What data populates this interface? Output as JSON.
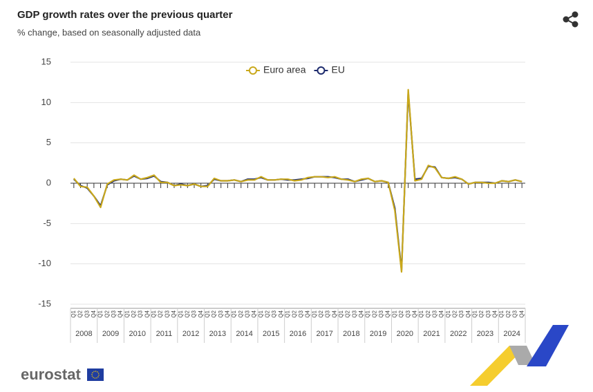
{
  "chart_data": {
    "type": "line",
    "title": "GDP growth rates over the previous quarter",
    "subtitle": "% change, based on seasonally adjusted data",
    "categories": [
      "Q1",
      "Q2",
      "Q3",
      "Q4",
      "Q1",
      "Q2",
      "Q3",
      "Q4",
      "Q1",
      "Q2",
      "Q3",
      "Q4",
      "Q1",
      "Q2",
      "Q3",
      "Q4",
      "Q1",
      "Q2",
      "Q3",
      "Q4",
      "Q1",
      "Q2",
      "Q3",
      "Q4",
      "Q1",
      "Q2",
      "Q3",
      "Q4",
      "Q1",
      "Q2",
      "Q3",
      "Q4",
      "Q1",
      "Q2",
      "Q3",
      "Q4",
      "Q1",
      "Q2",
      "Q3",
      "Q4",
      "Q1",
      "Q2",
      "Q3",
      "Q4",
      "Q1",
      "Q2",
      "Q3",
      "Q4",
      "Q1",
      "Q2",
      "Q3",
      "Q4",
      "Q1",
      "Q2",
      "Q3",
      "Q4",
      "Q1",
      "Q2",
      "Q3",
      "Q4",
      "Q1",
      "Q2",
      "Q3",
      "Q4",
      "Q1",
      "Q2",
      "Q3",
      "Q4"
    ],
    "year_groups": [
      "2008",
      "2009",
      "2010",
      "2011",
      "2012",
      "2013",
      "2014",
      "2015",
      "2016",
      "2017",
      "2018",
      "2019",
      "2020",
      "2021",
      "2022",
      "2023",
      "2024"
    ],
    "series": [
      {
        "name": "Euro area",
        "color": "#c9a81b",
        "values": [
          0.6,
          -0.4,
          -0.5,
          -1.6,
          -3.0,
          -0.1,
          0.4,
          0.5,
          0.4,
          1.0,
          0.5,
          0.7,
          1.0,
          0.1,
          0.1,
          -0.3,
          -0.2,
          -0.3,
          -0.1,
          -0.4,
          -0.4,
          0.6,
          0.3,
          0.3,
          0.4,
          0.2,
          0.4,
          0.4,
          0.8,
          0.4,
          0.4,
          0.5,
          0.5,
          0.3,
          0.4,
          0.7,
          0.8,
          0.8,
          0.7,
          0.8,
          0.5,
          0.4,
          0.2,
          0.5,
          0.6,
          0.2,
          0.3,
          0.1,
          -3.4,
          -11.0,
          11.6,
          0.3,
          0.5,
          2.2,
          1.9,
          0.7,
          0.6,
          0.8,
          0.5,
          -0.1,
          0.1,
          0.1,
          0.0,
          0.0,
          0.3,
          0.2,
          0.4,
          0.2
        ]
      },
      {
        "name": "EU",
        "color": "#1c2a6c",
        "values": [
          0.5,
          -0.3,
          -0.6,
          -1.6,
          -2.8,
          -0.2,
          0.3,
          0.5,
          0.4,
          0.9,
          0.5,
          0.6,
          0.9,
          0.2,
          0.1,
          -0.3,
          -0.1,
          -0.3,
          -0.1,
          -0.4,
          -0.3,
          0.5,
          0.3,
          0.3,
          0.4,
          0.2,
          0.5,
          0.5,
          0.7,
          0.4,
          0.4,
          0.5,
          0.4,
          0.4,
          0.5,
          0.6,
          0.8,
          0.8,
          0.8,
          0.7,
          0.5,
          0.5,
          0.2,
          0.4,
          0.6,
          0.2,
          0.3,
          0.1,
          -3.1,
          -10.8,
          11.3,
          0.5,
          0.6,
          2.1,
          2.0,
          0.7,
          0.6,
          0.7,
          0.5,
          -0.1,
          0.1,
          0.1,
          0.1,
          0.0,
          0.3,
          0.2,
          0.4,
          0.2
        ]
      }
    ],
    "ylim": [
      -15,
      15
    ],
    "yticks": [
      -15,
      -10,
      -5,
      0,
      5,
      10,
      15
    ],
    "grid": true,
    "legend": "top"
  },
  "branding": "eurostat"
}
